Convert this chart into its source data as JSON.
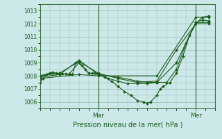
{
  "xlabel": "Pression niveau de la mer( hPa )",
  "bg_color": "#cde8e8",
  "grid_color": "#99bbbb",
  "line_color": "#1a5c1a",
  "xlim": [
    0,
    54
  ],
  "ylim": [
    1005.5,
    1013.5
  ],
  "yticks": [
    1006,
    1007,
    1008,
    1009,
    1010,
    1011,
    1012,
    1013
  ],
  "vlines": [
    18,
    48
  ],
  "xtick_pos": [
    18,
    48
  ],
  "xticklabels": [
    "Mar",
    "Mer"
  ],
  "series": [
    [
      0,
      1007.5,
      1,
      1007.8,
      2,
      1008.1,
      3,
      1008.2,
      4,
      1008.25,
      5,
      1008.2,
      6,
      1008.2,
      7,
      1008.15,
      8,
      1008.15,
      9,
      1008.1,
      10,
      1008.1,
      11,
      1009.0,
      12,
      1009.0,
      13,
      1008.8,
      14,
      1008.5,
      15,
      1008.2,
      16,
      1008.2,
      17,
      1008.2,
      18,
      1008.1,
      20,
      1007.9,
      22,
      1007.6,
      24,
      1007.2,
      26,
      1006.8,
      28,
      1006.5,
      30,
      1006.1,
      32,
      1006.0,
      33,
      1005.9,
      34,
      1006.0,
      36,
      1006.5,
      37,
      1007.0,
      38,
      1007.2,
      40,
      1007.5,
      42,
      1008.2,
      44,
      1009.5,
      46,
      1011.1,
      48,
      1012.0,
      50,
      1012.5,
      52,
      1012.6
    ],
    [
      0,
      1008.0,
      3,
      1008.2,
      6,
      1008.1,
      9,
      1008.15,
      12,
      1009.0,
      15,
      1008.2,
      18,
      1008.1,
      21,
      1007.8,
      24,
      1007.6,
      27,
      1007.4,
      30,
      1007.4,
      33,
      1007.4,
      36,
      1007.5,
      39,
      1007.5,
      42,
      1008.5,
      45,
      1010.5,
      48,
      1012.1,
      50,
      1012.3,
      52,
      1012.2
    ],
    [
      0,
      1008.0,
      6,
      1008.2,
      12,
      1009.1,
      18,
      1008.2,
      24,
      1007.8,
      30,
      1007.5,
      36,
      1007.6,
      42,
      1010.0,
      48,
      1012.0,
      52,
      1012.0
    ],
    [
      0,
      1007.8,
      12,
      1008.1,
      18,
      1008.0,
      36,
      1008.0,
      48,
      1012.5,
      52,
      1012.5
    ],
    [
      0,
      1007.9,
      6,
      1008.1,
      12,
      1009.2,
      18,
      1008.1,
      24,
      1007.9,
      30,
      1007.6,
      33,
      1007.5,
      36,
      1007.5,
      42,
      1009.0,
      48,
      1012.1,
      52,
      1012.1
    ]
  ]
}
